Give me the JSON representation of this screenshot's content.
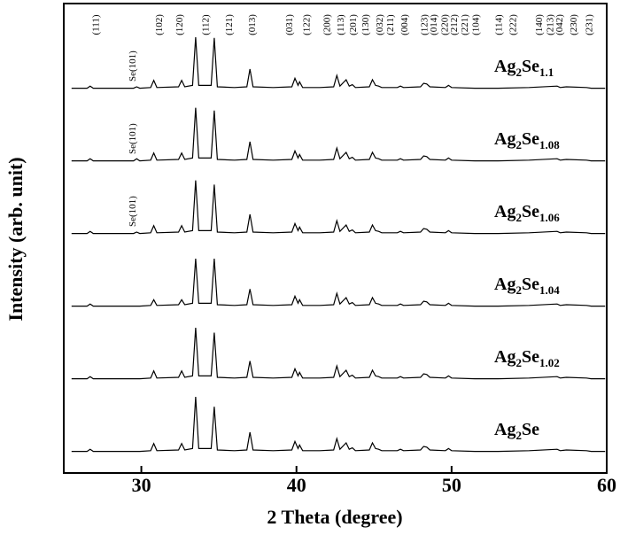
{
  "chart_data": {
    "type": "line",
    "xlabel": "2 Theta (degree)",
    "ylabel": "Intensity (arb. unit)",
    "xlim": [
      25,
      60
    ],
    "xticks": [
      30,
      40,
      50,
      60
    ],
    "ylim": [
      0,
      100
    ],
    "peak_labels": [
      {
        "x": 27.1,
        "label": "(111)"
      },
      {
        "x": 31.2,
        "label": "(102)"
      },
      {
        "x": 32.5,
        "label": "(120)"
      },
      {
        "x": 34.2,
        "label": "(112)"
      },
      {
        "x": 35.7,
        "label": "(121)"
      },
      {
        "x": 37.2,
        "label": "(013)"
      },
      {
        "x": 39.6,
        "label": "(031)"
      },
      {
        "x": 40.7,
        "label": "(122)"
      },
      {
        "x": 42.0,
        "label": "(200)"
      },
      {
        "x": 42.9,
        "label": "(113)"
      },
      {
        "x": 43.7,
        "label": "(201)"
      },
      {
        "x": 44.5,
        "label": "(130)"
      },
      {
        "x": 45.4,
        "label": "(032)"
      },
      {
        "x": 46.1,
        "label": "(211)"
      },
      {
        "x": 47.0,
        "label": "(004)"
      },
      {
        "x": 48.3,
        "label": "(123)"
      },
      {
        "x": 48.9,
        "label": "(014)"
      },
      {
        "x": 49.6,
        "label": "(220)"
      },
      {
        "x": 50.2,
        "label": "(212)"
      },
      {
        "x": 50.9,
        "label": "(221)"
      },
      {
        "x": 51.6,
        "label": "(104)"
      },
      {
        "x": 53.1,
        "label": "(114)"
      },
      {
        "x": 54.0,
        "label": "(222)"
      },
      {
        "x": 55.7,
        "label": "(140)"
      },
      {
        "x": 56.4,
        "label": "(213)"
      },
      {
        "x": 57.0,
        "label": "(042)"
      },
      {
        "x": 57.9,
        "label": "(230)"
      },
      {
        "x": 58.9,
        "label": "(231)"
      }
    ],
    "x": [
      25.5,
      26.5,
      26.7,
      26.9,
      28,
      29.5,
      29.7,
      29.9,
      30.6,
      30.8,
      31.0,
      32.4,
      32.6,
      32.8,
      33.3,
      33.5,
      33.7,
      34.5,
      34.7,
      34.9,
      36.0,
      36.8,
      37.0,
      37.2,
      38.5,
      39.7,
      39.9,
      40.1,
      40.2,
      40.4,
      41.5,
      42.4,
      42.6,
      42.8,
      43.2,
      43.4,
      43.6,
      43.8,
      44.7,
      44.9,
      45.1,
      45.3,
      45.5,
      46.5,
      46.7,
      46.9,
      48.0,
      48.2,
      48.4,
      48.6,
      49.6,
      49.8,
      50.0,
      51.5,
      53.0,
      55.0,
      56.8,
      57.0,
      57.4,
      58.7,
      59.0,
      59.9
    ],
    "series": [
      {
        "name": "Ag2Se1.1",
        "color": "#000000",
        "annotation": {
          "text": "Se(101)",
          "x": 29.7
        },
        "values": [
          3,
          3,
          6,
          3,
          3,
          3,
          5,
          3,
          4,
          14,
          4,
          5,
          14,
          5,
          7,
          75,
          7,
          7,
          74,
          5,
          4,
          5,
          30,
          5,
          4,
          5,
          17,
          7,
          12,
          4,
          4,
          5,
          21,
          6,
          15,
          6,
          8,
          4,
          5,
          15,
          7,
          6,
          4,
          4,
          6,
          4,
          5,
          10,
          9,
          5,
          4,
          7,
          4,
          3,
          3,
          4,
          6,
          4,
          5,
          4,
          3,
          3
        ]
      },
      {
        "name": "Ag2Se1.08",
        "color": "#000000",
        "annotation": {
          "text": "Se(101)",
          "x": 29.7
        },
        "values": [
          3,
          3,
          6,
          3,
          3,
          3,
          6,
          3,
          4,
          14,
          4,
          5,
          14,
          5,
          7,
          78,
          7,
          7,
          74,
          5,
          4,
          5,
          30,
          5,
          4,
          5,
          17,
          7,
          12,
          4,
          4,
          5,
          21,
          6,
          15,
          6,
          8,
          4,
          5,
          15,
          7,
          6,
          4,
          4,
          6,
          4,
          5,
          10,
          9,
          5,
          4,
          7,
          4,
          3,
          3,
          4,
          6,
          4,
          5,
          4,
          3,
          3
        ]
      },
      {
        "name": "Ag2Se1.06",
        "color": "#000000",
        "annotation": {
          "text": "Se(101)",
          "x": 29.7
        },
        "values": [
          3,
          3,
          6,
          3,
          3,
          3,
          5,
          3,
          4,
          14,
          4,
          5,
          14,
          5,
          7,
          78,
          7,
          7,
          72,
          5,
          4,
          5,
          30,
          5,
          4,
          5,
          17,
          7,
          12,
          4,
          4,
          5,
          21,
          6,
          15,
          6,
          8,
          4,
          5,
          15,
          7,
          6,
          4,
          4,
          6,
          4,
          5,
          10,
          9,
          5,
          4,
          7,
          4,
          3,
          3,
          4,
          6,
          4,
          5,
          4,
          3,
          3
        ]
      },
      {
        "name": "Ag2Se1.04",
        "color": "#000000",
        "values": [
          3,
          3,
          6,
          3,
          3,
          3,
          3,
          3,
          4,
          12,
          4,
          5,
          12,
          5,
          7,
          70,
          7,
          7,
          70,
          5,
          4,
          5,
          27,
          5,
          4,
          5,
          17,
          7,
          12,
          4,
          4,
          5,
          21,
          6,
          15,
          6,
          8,
          4,
          5,
          15,
          7,
          6,
          4,
          4,
          6,
          4,
          5,
          10,
          9,
          5,
          4,
          7,
          4,
          3,
          3,
          4,
          6,
          4,
          5,
          4,
          3,
          3
        ]
      },
      {
        "name": "Ag2Se1.02",
        "color": "#000000",
        "values": [
          3,
          3,
          6,
          3,
          3,
          3,
          3,
          3,
          4,
          14,
          4,
          5,
          14,
          5,
          7,
          75,
          7,
          7,
          68,
          5,
          4,
          5,
          28,
          5,
          4,
          5,
          17,
          7,
          12,
          4,
          4,
          5,
          21,
          6,
          15,
          6,
          8,
          4,
          5,
          15,
          7,
          6,
          4,
          4,
          6,
          4,
          5,
          10,
          9,
          5,
          4,
          7,
          4,
          3,
          3,
          4,
          6,
          4,
          5,
          4,
          3,
          3
        ]
      },
      {
        "name": "Ag2Se",
        "color": "#000000",
        "values": [
          3,
          3,
          6,
          3,
          3,
          3,
          3,
          3,
          4,
          14,
          4,
          5,
          14,
          5,
          7,
          80,
          7,
          7,
          66,
          5,
          4,
          5,
          30,
          5,
          4,
          5,
          17,
          7,
          12,
          4,
          4,
          5,
          21,
          6,
          15,
          6,
          8,
          4,
          5,
          15,
          7,
          6,
          4,
          4,
          6,
          4,
          5,
          10,
          9,
          5,
          4,
          7,
          4,
          3,
          3,
          4,
          6,
          4,
          5,
          4,
          3,
          3
        ]
      }
    ]
  }
}
